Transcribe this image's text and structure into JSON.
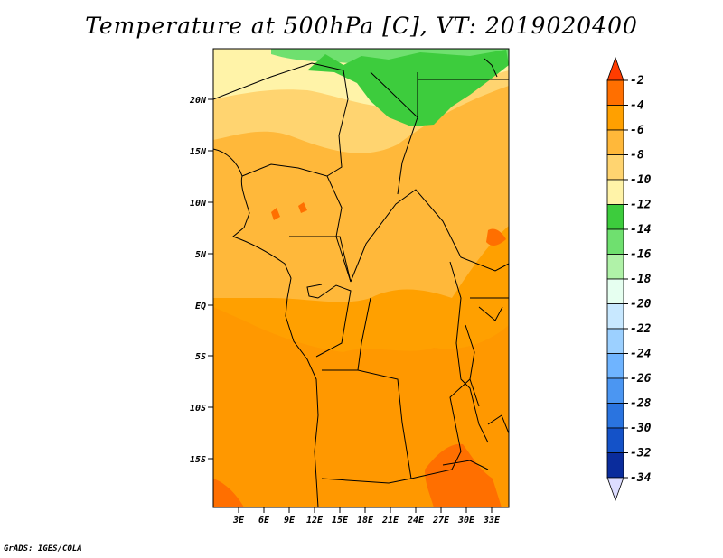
{
  "title": "Temperature at 500hPa [C], VT: 2019020400",
  "credit": "GrADS: IGES/COLA",
  "lat_ticks": [
    "20N",
    "15N",
    "10N",
    "5N",
    "EQ",
    "5S",
    "10S",
    "15S"
  ],
  "lon_ticks": [
    "3E",
    "6E",
    "9E",
    "12E",
    "15E",
    "18E",
    "21E",
    "24E",
    "27E",
    "30E",
    "33E"
  ],
  "colorbar": {
    "labels": [
      "-2",
      "-4",
      "-6",
      "-8",
      "-10",
      "-12",
      "-14",
      "-16",
      "-18",
      "-20",
      "-22",
      "-24",
      "-26",
      "-28",
      "-30",
      "-32",
      "-34"
    ],
    "colors": [
      "#ff3c00",
      "#ff6f00",
      "#ffa000",
      "#ffb83a",
      "#ffd470",
      "#fff3a8",
      "#3dcc3d",
      "#6fe06f",
      "#b0f2a8",
      "#e6fff0",
      "#c8e8ff",
      "#9cd0ff",
      "#6fb4ff",
      "#4b96f2",
      "#2a74e0",
      "#1452c8",
      "#0a2c9c",
      "#0a126e",
      "#dcdcff"
    ]
  }
}
